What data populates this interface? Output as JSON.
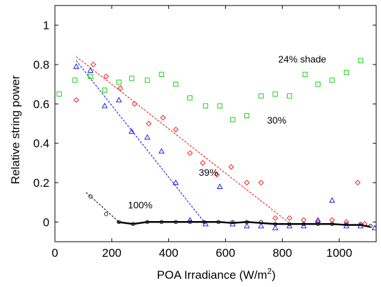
{
  "chart_data": {
    "type": "scatter",
    "xlabel": "POA Irradiance (W/m",
    "xlabel_sup": "2",
    "xlabel_end": ")",
    "ylabel": "Relative string power",
    "xlim": [
      0,
      1130
    ],
    "ylim": [
      -0.1,
      1.1
    ],
    "x_ticks": [
      0,
      200,
      400,
      600,
      800,
      1000
    ],
    "y_ticks": [
      0,
      0.2,
      0.4,
      0.6,
      0.8,
      1
    ],
    "x_tick_labels": [
      "0",
      "200",
      "400",
      "600",
      "800",
      "1000"
    ],
    "y_tick_labels": [
      "0",
      "0.2",
      "0.4",
      "0.6",
      "0.8",
      "1"
    ],
    "grid": false,
    "annotations": [
      {
        "text": "24% shade",
        "x": 870,
        "y": 0.81
      },
      {
        "text": "30%",
        "x": 780,
        "y": 0.5
      },
      {
        "text": "39%",
        "x": 540,
        "y": 0.235
      },
      {
        "text": "100%",
        "x": 300,
        "y": 0.07
      }
    ],
    "series": [
      {
        "marker": "square",
        "color": "#00cc00",
        "points": [
          [
            15,
            0.65
          ],
          [
            70,
            0.72
          ],
          [
            125,
            0.74
          ],
          [
            175,
            0.67
          ],
          [
            225,
            0.71
          ],
          [
            270,
            0.73
          ],
          [
            325,
            0.72
          ],
          [
            375,
            0.75
          ],
          [
            425,
            0.7
          ],
          [
            475,
            0.63
          ],
          [
            530,
            0.59
          ],
          [
            580,
            0.59
          ],
          [
            625,
            0.52
          ],
          [
            675,
            0.54
          ],
          [
            725,
            0.64
          ],
          [
            775,
            0.65
          ],
          [
            825,
            0.64
          ],
          [
            880,
            0.75
          ],
          [
            925,
            0.7
          ],
          [
            975,
            0.72
          ],
          [
            1025,
            0.76
          ],
          [
            1075,
            0.82
          ]
        ]
      },
      {
        "marker": "diamond",
        "color": "#ff0000",
        "points": [
          [
            75,
            0.62
          ],
          [
            135,
            0.8
          ],
          [
            180,
            0.74
          ],
          [
            230,
            0.68
          ],
          [
            280,
            0.6
          ],
          [
            330,
            0.5
          ],
          [
            380,
            0.53
          ],
          [
            425,
            0.47
          ],
          [
            475,
            0.35
          ],
          [
            520,
            0.3
          ],
          [
            570,
            0.24
          ],
          [
            620,
            0.28
          ],
          [
            675,
            0.2
          ],
          [
            725,
            0.2
          ],
          [
            775,
            0.02
          ],
          [
            825,
            0.02
          ],
          [
            875,
            0.01
          ],
          [
            925,
            0.0
          ],
          [
            975,
            0.01
          ],
          [
            1025,
            0.0
          ],
          [
            1065,
            0.2
          ],
          [
            1090,
            -0.01
          ]
        ],
        "trend": [
          [
            75,
            0.84
          ],
          [
            820,
            0.0
          ]
        ]
      },
      {
        "marker": "triangle",
        "color": "#0000ff",
        "points": [
          [
            75,
            0.79
          ],
          [
            125,
            0.77
          ],
          [
            175,
            0.59
          ],
          [
            225,
            0.62
          ],
          [
            270,
            0.46
          ],
          [
            325,
            0.43
          ],
          [
            375,
            0.36
          ],
          [
            425,
            0.2
          ],
          [
            475,
            0.01
          ],
          [
            530,
            -0.01
          ],
          [
            580,
            0.18
          ],
          [
            625,
            -0.01
          ],
          [
            675,
            -0.02
          ],
          [
            725,
            -0.02
          ],
          [
            775,
            -0.03
          ],
          [
            825,
            -0.02
          ],
          [
            875,
            -0.02
          ],
          [
            925,
            0.01
          ],
          [
            975,
            0.11
          ],
          [
            1025,
            -0.02
          ],
          [
            1075,
            -0.02
          ],
          [
            1125,
            -0.03
          ]
        ],
        "trend": [
          [
            75,
            0.82
          ],
          [
            525,
            0.0
          ]
        ]
      },
      {
        "marker": "circle",
        "color": "#000000",
        "points": [
          [
            125,
            0.13
          ],
          [
            180,
            0.04
          ],
          [
            225,
            0.0
          ],
          [
            275,
            -0.01
          ],
          [
            325,
            0.0
          ],
          [
            375,
            0.0
          ],
          [
            425,
            0.0
          ],
          [
            475,
            0.0
          ],
          [
            525,
            0.0
          ],
          [
            575,
            0.0
          ],
          [
            625,
            0.0
          ],
          [
            675,
            0.0
          ],
          [
            725,
            0.0
          ],
          [
            775,
            -0.01
          ],
          [
            825,
            -0.01
          ],
          [
            875,
            -0.01
          ],
          [
            925,
            -0.01
          ],
          [
            975,
            -0.01
          ],
          [
            1025,
            -0.01
          ],
          [
            1075,
            -0.01
          ],
          [
            1110,
            -0.02
          ]
        ],
        "trend_dashed": [
          [
            110,
            0.15
          ],
          [
            225,
            0.0
          ]
        ],
        "trend_solid": [
          [
            220,
            0.0
          ],
          [
            275,
            -0.01
          ],
          [
            325,
            0.0
          ],
          [
            375,
            0.0
          ],
          [
            425,
            0.0
          ],
          [
            475,
            0.0
          ],
          [
            525,
            0.0
          ],
          [
            575,
            0.0
          ],
          [
            625,
            -0.005
          ],
          [
            675,
            0.0
          ],
          [
            725,
            -0.005
          ],
          [
            775,
            -0.01
          ],
          [
            825,
            -0.01
          ],
          [
            875,
            -0.01
          ],
          [
            925,
            -0.01
          ],
          [
            975,
            -0.01
          ],
          [
            1025,
            -0.015
          ],
          [
            1075,
            -0.015
          ],
          [
            1110,
            -0.025
          ]
        ]
      }
    ]
  }
}
